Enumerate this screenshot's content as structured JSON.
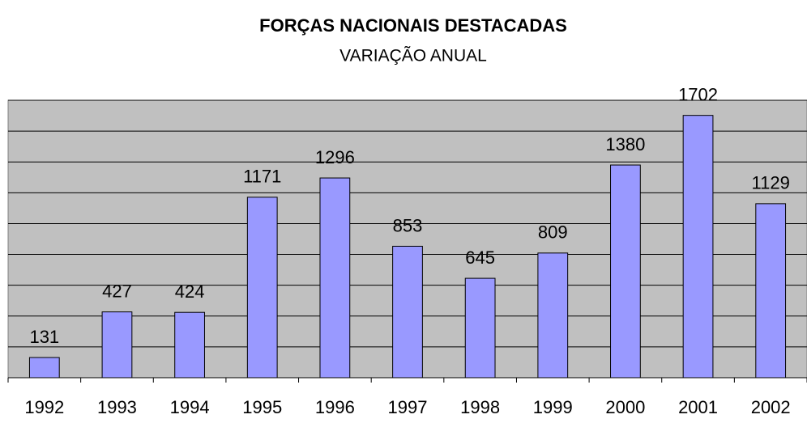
{
  "chart_data": {
    "type": "bar",
    "title": "FORÇAS NACIONAIS DESTACADAS",
    "subtitle": "VARIAÇÃO ANUAL",
    "categories": [
      "1992",
      "1993",
      "1994",
      "1995",
      "1996",
      "1997",
      "1998",
      "1999",
      "2000",
      "2001",
      "2002"
    ],
    "values": [
      131,
      427,
      424,
      1171,
      1296,
      853,
      645,
      809,
      1380,
      1702,
      1129
    ],
    "color": "#9999ff",
    "ylim": [
      0,
      1800
    ],
    "yticks": [
      0,
      200,
      400,
      600,
      800,
      1000,
      1200,
      1400,
      1600,
      1800
    ],
    "grid": true
  }
}
